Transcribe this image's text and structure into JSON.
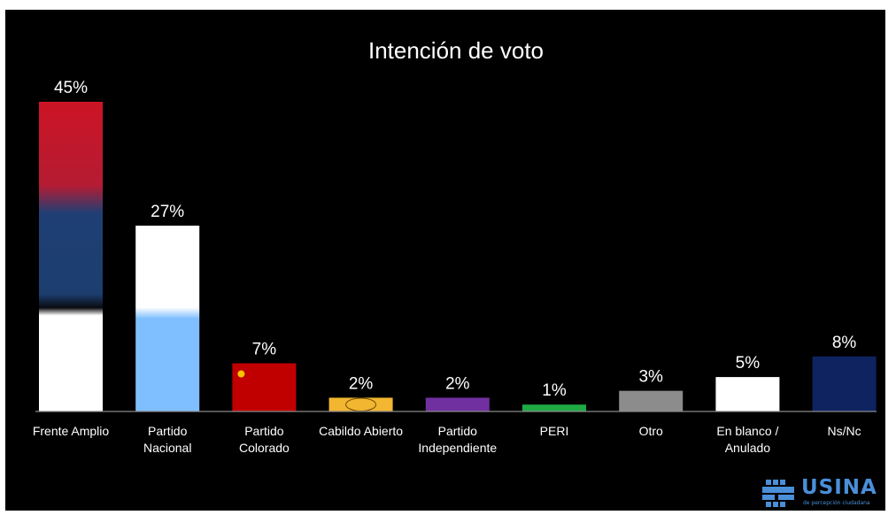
{
  "chart_data": {
    "type": "bar",
    "title": "Intención de voto",
    "categories": [
      {
        "label": [
          "Frente Amplio"
        ],
        "value": 45,
        "value_label": "45%",
        "color": "#cc1425"
      },
      {
        "label": [
          "Partido",
          "Nacional"
        ],
        "value": 27,
        "value_label": "27%",
        "color": "#7fbfff"
      },
      {
        "label": [
          "Partido",
          "Colorado"
        ],
        "value": 7,
        "value_label": "7%",
        "color": "#c00000"
      },
      {
        "label": [
          "Cabildo Abierto"
        ],
        "value": 2,
        "value_label": "2%",
        "color": "#f2b630"
      },
      {
        "label": [
          "Partido",
          "Independiente"
        ],
        "value": 2,
        "value_label": "2%",
        "color": "#7030a0"
      },
      {
        "label": [
          "PERI"
        ],
        "value": 1,
        "value_label": "1%",
        "color": "#1faa44"
      },
      {
        "label": [
          "Otro"
        ],
        "value": 3,
        "value_label": "3%",
        "color": "#8c8c8c"
      },
      {
        "label": [
          "En blanco /",
          "Anulado"
        ],
        "value": 5,
        "value_label": "5%",
        "color": "#ffffff"
      },
      {
        "label": [
          "Ns/Nc"
        ],
        "value": 8,
        "value_label": "8%",
        "color": "#0f2360"
      }
    ],
    "ylim": [
      0,
      45
    ],
    "grid": false,
    "legend": "none",
    "background": "#000000"
  },
  "logo": {
    "name": "USINA",
    "tagline": "de percepción ciudadana",
    "icon": "usina-logo-icon",
    "color": "#4a8fd8"
  }
}
